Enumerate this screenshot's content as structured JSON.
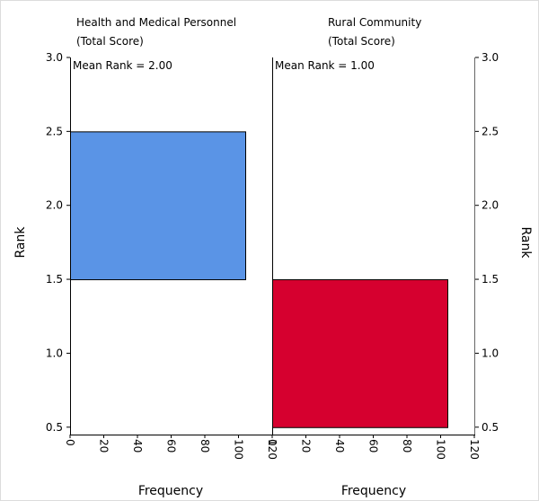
{
  "chart_data": {
    "type": "bar",
    "orientation": "horizontal",
    "yaxis": {
      "label": "Rank",
      "range": [
        0.45,
        3.0
      ],
      "ticks": [
        "3.0",
        "2.5",
        "2.0",
        "1.5",
        "1.0",
        "0.5"
      ]
    },
    "xaxis": {
      "label": "Frequency",
      "range": [
        0,
        120
      ],
      "ticks": [
        "0",
        "20",
        "40",
        "60",
        "80",
        "100",
        "120"
      ]
    },
    "panels": [
      {
        "title_line1": "Health and Medical Personnel",
        "title_line2": "(Total Score)",
        "annotation": "Mean Rank = 2.00",
        "bars": [
          {
            "rank_from": 1.5,
            "rank_to": 2.5,
            "frequency": 104
          }
        ],
        "color": "#5a94e6"
      },
      {
        "title_line1": "Rural Community",
        "title_line2": "(Total Score)",
        "annotation": "Mean Rank = 1.00",
        "bars": [
          {
            "rank_from": 0.5,
            "rank_to": 1.5,
            "frequency": 104
          }
        ],
        "color": "#d6002f"
      }
    ],
    "grid": false
  }
}
